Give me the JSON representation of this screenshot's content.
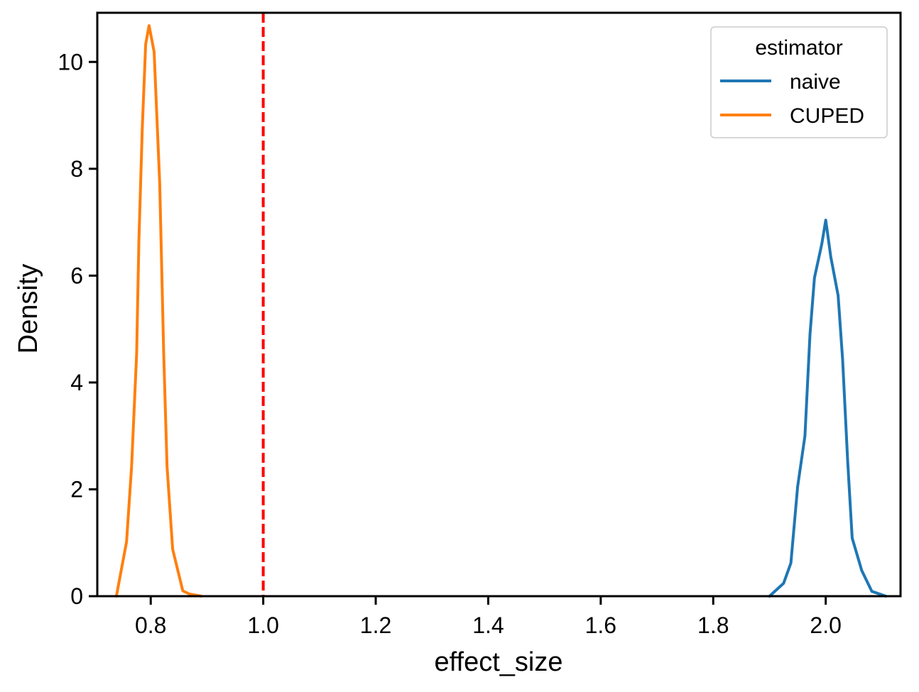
{
  "chart_data": {
    "type": "line",
    "title": "",
    "xlabel": "effect_size",
    "ylabel": "Density",
    "xlim": [
      0.705,
      2.133
    ],
    "ylim": [
      0,
      10.92
    ],
    "xticks": [
      0.8,
      1.0,
      1.2,
      1.4,
      1.6,
      1.8,
      2.0
    ],
    "xtick_labels": [
      "0.8",
      "1.0",
      "1.2",
      "1.4",
      "1.6",
      "1.8",
      "2.0"
    ],
    "yticks": [
      0,
      2,
      4,
      6,
      8,
      10
    ],
    "ytick_labels": [
      "0",
      "2",
      "4",
      "6",
      "8",
      "10"
    ],
    "grid": false,
    "legend": {
      "title": "estimator",
      "placement": "top-right"
    },
    "series": [
      {
        "name": "naive",
        "color": "#1f77b4",
        "x": [
          1.9,
          1.925,
          1.938,
          1.95,
          1.963,
          1.972,
          1.98,
          1.993,
          2.0,
          2.009,
          2.022,
          2.03,
          2.039,
          2.047,
          2.064,
          2.082,
          2.107
        ],
        "y": [
          0,
          0.24,
          0.62,
          2.05,
          3.0,
          4.9,
          5.96,
          6.59,
          7.04,
          6.35,
          5.63,
          4.44,
          2.52,
          1.09,
          0.48,
          0.09,
          0
        ]
      },
      {
        "name": "CUPED",
        "color": "#ff7f0e",
        "x": [
          0.739,
          0.757,
          0.766,
          0.775,
          0.779,
          0.785,
          0.791,
          0.797,
          0.806,
          0.816,
          0.823,
          0.829,
          0.839,
          0.857,
          0.869,
          0.89
        ],
        "y": [
          0,
          1.02,
          2.43,
          4.54,
          6.67,
          8.78,
          10.33,
          10.68,
          10.19,
          7.72,
          4.54,
          2.43,
          0.88,
          0.1,
          0.04,
          0
        ]
      }
    ],
    "annotations": [
      {
        "type": "vline",
        "x": 1.0,
        "color": "#ff0000",
        "style": "dashed"
      }
    ]
  }
}
